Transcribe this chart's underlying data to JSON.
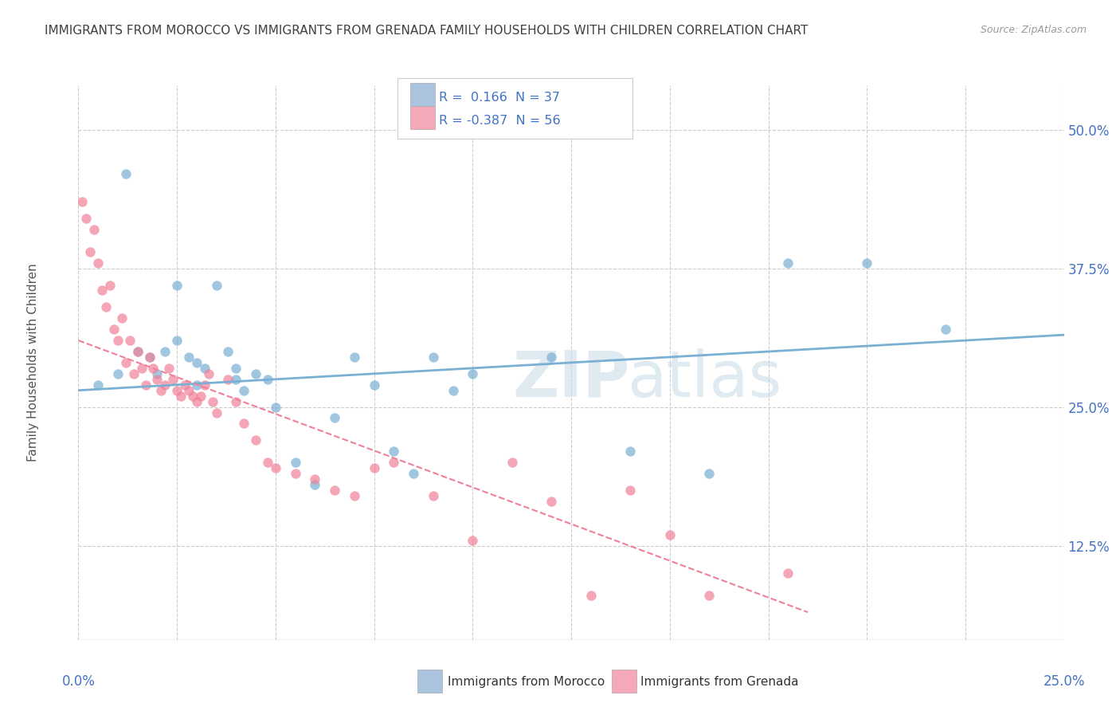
{
  "title": "IMMIGRANTS FROM MOROCCO VS IMMIGRANTS FROM GRENADA FAMILY HOUSEHOLDS WITH CHILDREN CORRELATION CHART",
  "source": "Source: ZipAtlas.com",
  "ylabel": "Family Households with Children",
  "ytick_labels": [
    "12.5%",
    "25.0%",
    "37.5%",
    "50.0%"
  ],
  "ytick_vals": [
    0.125,
    0.25,
    0.375,
    0.5
  ],
  "xmin": 0.0,
  "xmax": 0.25,
  "ymin": 0.04,
  "ymax": 0.54,
  "legend1_label": "R =  0.166  N = 37",
  "legend2_label": "R = -0.387  N = 56",
  "legend1_color": "#aac4e0",
  "legend2_color": "#f4a8b8",
  "morocco_color": "#7ab0d4",
  "grenada_color": "#f08098",
  "morocco_scatter_x": [
    0.005,
    0.01,
    0.012,
    0.015,
    0.018,
    0.02,
    0.022,
    0.025,
    0.025,
    0.028,
    0.03,
    0.03,
    0.032,
    0.035,
    0.038,
    0.04,
    0.04,
    0.042,
    0.045,
    0.048,
    0.05,
    0.055,
    0.06,
    0.065,
    0.07,
    0.075,
    0.08,
    0.085,
    0.09,
    0.095,
    0.1,
    0.12,
    0.14,
    0.16,
    0.18,
    0.2,
    0.22
  ],
  "morocco_scatter_y": [
    0.27,
    0.28,
    0.46,
    0.3,
    0.295,
    0.28,
    0.3,
    0.36,
    0.31,
    0.295,
    0.27,
    0.29,
    0.285,
    0.36,
    0.3,
    0.285,
    0.275,
    0.265,
    0.28,
    0.275,
    0.25,
    0.2,
    0.18,
    0.24,
    0.295,
    0.27,
    0.21,
    0.19,
    0.295,
    0.265,
    0.28,
    0.295,
    0.21,
    0.19,
    0.38,
    0.38,
    0.32
  ],
  "grenada_scatter_x": [
    0.001,
    0.002,
    0.003,
    0.004,
    0.005,
    0.006,
    0.007,
    0.008,
    0.009,
    0.01,
    0.011,
    0.012,
    0.013,
    0.014,
    0.015,
    0.016,
    0.017,
    0.018,
    0.019,
    0.02,
    0.021,
    0.022,
    0.023,
    0.024,
    0.025,
    0.026,
    0.027,
    0.028,
    0.029,
    0.03,
    0.031,
    0.032,
    0.033,
    0.034,
    0.035,
    0.038,
    0.04,
    0.042,
    0.045,
    0.048,
    0.05,
    0.055,
    0.06,
    0.065,
    0.07,
    0.075,
    0.08,
    0.09,
    0.1,
    0.11,
    0.12,
    0.13,
    0.14,
    0.15,
    0.16,
    0.18
  ],
  "grenada_scatter_y": [
    0.435,
    0.42,
    0.39,
    0.41,
    0.38,
    0.355,
    0.34,
    0.36,
    0.32,
    0.31,
    0.33,
    0.29,
    0.31,
    0.28,
    0.3,
    0.285,
    0.27,
    0.295,
    0.285,
    0.275,
    0.265,
    0.27,
    0.285,
    0.275,
    0.265,
    0.26,
    0.27,
    0.265,
    0.26,
    0.255,
    0.26,
    0.27,
    0.28,
    0.255,
    0.245,
    0.275,
    0.255,
    0.235,
    0.22,
    0.2,
    0.195,
    0.19,
    0.185,
    0.175,
    0.17,
    0.195,
    0.2,
    0.17,
    0.13,
    0.2,
    0.165,
    0.08,
    0.175,
    0.135,
    0.08,
    0.1
  ],
  "morocco_trend_x": [
    0.0,
    0.25
  ],
  "morocco_trend_y": [
    0.265,
    0.315
  ],
  "grenada_trend_x": [
    0.0,
    0.185
  ],
  "grenada_trend_y": [
    0.31,
    0.065
  ],
  "grid_color": "#cccccc",
  "title_color": "#404040",
  "axis_color": "#4472c4",
  "background_color": "#ffffff"
}
